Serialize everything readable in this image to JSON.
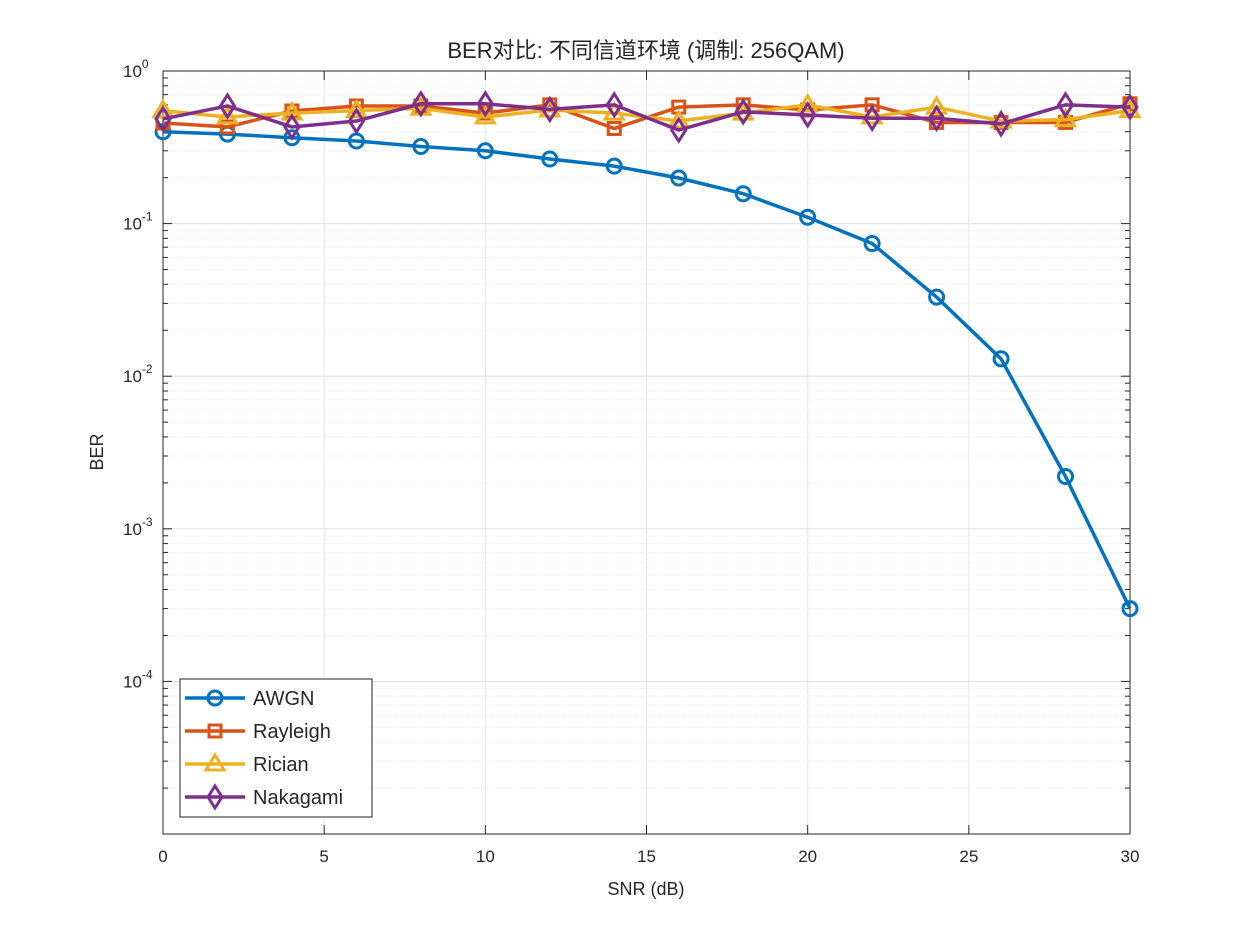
{
  "chart_data": {
    "type": "line",
    "title": "BER对比: 不同信道环境 (调制: 256QAM)",
    "xlabel": "SNR (dB)",
    "ylabel": "BER",
    "xlim": [
      0,
      30
    ],
    "ylim": [
      1e-05,
      1
    ],
    "yscale": "log",
    "grid": true,
    "legend_position": "bottom-left",
    "xticks": [
      0,
      5,
      10,
      15,
      20,
      25,
      30
    ],
    "yticks": [
      {
        "base": "10",
        "exp": "0",
        "value": 1
      },
      {
        "base": "10",
        "exp": "-1",
        "value": 0.1
      },
      {
        "base": "10",
        "exp": "-2",
        "value": 0.01
      },
      {
        "base": "10",
        "exp": "-3",
        "value": 0.001
      },
      {
        "base": "10",
        "exp": "-4",
        "value": 0.0001
      }
    ],
    "x": [
      0,
      2,
      4,
      6,
      8,
      10,
      12,
      14,
      16,
      18,
      20,
      22,
      24,
      26,
      28,
      30
    ],
    "series": [
      {
        "name": "AWGN",
        "color": "#0072BD",
        "marker": "circle",
        "values": [
          0.4,
          0.386,
          0.365,
          0.348,
          0.32,
          0.3,
          0.265,
          0.238,
          0.199,
          0.157,
          0.11,
          0.074,
          0.033,
          0.013,
          0.0022,
          0.0003
        ]
      },
      {
        "name": "Rayleigh",
        "color": "#D95319",
        "marker": "square",
        "values": [
          0.456,
          0.43,
          0.547,
          0.59,
          0.59,
          0.53,
          0.6,
          0.42,
          0.58,
          0.6,
          0.555,
          0.6,
          0.46,
          0.46,
          0.46,
          0.61
        ]
      },
      {
        "name": "Rician",
        "color": "#EDB120",
        "marker": "triangle",
        "values": [
          0.55,
          0.5,
          0.53,
          0.55,
          0.57,
          0.5,
          0.555,
          0.53,
          0.47,
          0.53,
          0.6,
          0.5,
          0.58,
          0.47,
          0.48,
          0.55
        ]
      },
      {
        "name": "Nakagami",
        "color": "#7E2F8E",
        "marker": "diamond",
        "values": [
          0.485,
          0.59,
          0.43,
          0.47,
          0.61,
          0.61,
          0.56,
          0.6,
          0.41,
          0.54,
          0.515,
          0.49,
          0.49,
          0.45,
          0.6,
          0.58
        ]
      }
    ]
  }
}
